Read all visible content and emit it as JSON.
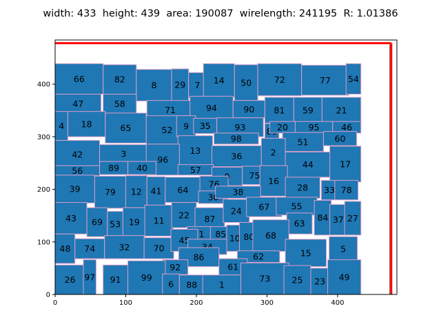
{
  "chart_data": {
    "type": "floorplan",
    "title": "width: 433  height: 439  area: 190087  wirelength: 241195  R: 1.01386",
    "xlim": [
      0,
      484
    ],
    "ylim": [
      0,
      484
    ],
    "xticks": [
      0,
      100,
      200,
      300,
      400
    ],
    "yticks": [
      0,
      100,
      200,
      300,
      400
    ],
    "grid": false,
    "colors": {
      "block_fill": "#1f77b4",
      "block_edge": "#d9a0c8",
      "outline": "#ff0000",
      "outline_dark": "#7a1a1a"
    },
    "outline": {
      "width": 476,
      "height": 478
    },
    "blocks": [
      {
        "id": "66",
        "x": 0,
        "y": 381,
        "w": 68,
        "h": 58
      },
      {
        "id": "82",
        "x": 68,
        "y": 381,
        "w": 47,
        "h": 56
      },
      {
        "id": "8",
        "x": 115,
        "y": 368,
        "w": 50,
        "h": 60
      },
      {
        "id": "29",
        "x": 165,
        "y": 368,
        "w": 24,
        "h": 61
      },
      {
        "id": "7",
        "x": 189,
        "y": 374,
        "w": 25,
        "h": 48
      },
      {
        "id": "14",
        "x": 210,
        "y": 375,
        "w": 44,
        "h": 64
      },
      {
        "id": "50",
        "x": 254,
        "y": 369,
        "w": 33,
        "h": 68
      },
      {
        "id": "72",
        "x": 287,
        "y": 378,
        "w": 62,
        "h": 61
      },
      {
        "id": "77",
        "x": 349,
        "y": 379,
        "w": 67,
        "h": 57
      },
      {
        "id": "54",
        "x": 412,
        "y": 381,
        "w": 21,
        "h": 58
      },
      {
        "id": "47",
        "x": 0,
        "y": 345,
        "w": 65,
        "h": 36
      },
      {
        "id": "58",
        "x": 68,
        "y": 345,
        "w": 47,
        "h": 36
      },
      {
        "id": "71",
        "x": 130,
        "y": 333,
        "w": 66,
        "h": 36
      },
      {
        "id": "94",
        "x": 191,
        "y": 333,
        "w": 61,
        "h": 44
      },
      {
        "id": "90",
        "x": 252,
        "y": 336,
        "w": 45,
        "h": 33
      },
      {
        "id": "81",
        "x": 297,
        "y": 326,
        "w": 41,
        "h": 49
      },
      {
        "id": "59",
        "x": 338,
        "y": 326,
        "w": 40,
        "h": 49
      },
      {
        "id": "21",
        "x": 378,
        "y": 326,
        "w": 55,
        "h": 49
      },
      {
        "id": "4",
        "x": 0,
        "y": 293,
        "w": 18,
        "h": 55
      },
      {
        "id": "18",
        "x": 18,
        "y": 300,
        "w": 53,
        "h": 48
      },
      {
        "id": "65",
        "x": 71,
        "y": 288,
        "w": 58,
        "h": 57
      },
      {
        "id": "52",
        "x": 129,
        "y": 286,
        "w": 59,
        "h": 54
      },
      {
        "id": "9",
        "x": 172,
        "y": 300,
        "w": 27,
        "h": 40
      },
      {
        "id": "35",
        "x": 196,
        "y": 306,
        "w": 33,
        "h": 29
      },
      {
        "id": "93",
        "x": 229,
        "y": 300,
        "w": 66,
        "h": 36
      },
      {
        "id": "83",
        "x": 297,
        "y": 296,
        "w": 20,
        "h": 29
      },
      {
        "id": "20",
        "x": 304,
        "y": 307,
        "w": 36,
        "h": 22
      },
      {
        "id": "95",
        "x": 340,
        "y": 307,
        "w": 53,
        "h": 22
      },
      {
        "id": "46",
        "x": 393,
        "y": 307,
        "w": 40,
        "h": 22
      },
      {
        "id": "42",
        "x": 0,
        "y": 240,
        "w": 63,
        "h": 53
      },
      {
        "id": "3",
        "x": 63,
        "y": 250,
        "w": 68,
        "h": 35
      },
      {
        "id": "98",
        "x": 225,
        "y": 286,
        "w": 63,
        "h": 21
      },
      {
        "id": "51",
        "x": 322,
        "y": 272,
        "w": 58,
        "h": 36
      },
      {
        "id": "60",
        "x": 380,
        "y": 283,
        "w": 47,
        "h": 27
      },
      {
        "id": "13",
        "x": 174,
        "y": 245,
        "w": 49,
        "h": 57
      },
      {
        "id": "96",
        "x": 129,
        "y": 227,
        "w": 47,
        "h": 59
      },
      {
        "id": "36",
        "x": 222,
        "y": 243,
        "w": 70,
        "h": 40
      },
      {
        "id": "2",
        "x": 292,
        "y": 243,
        "w": 34,
        "h": 54
      },
      {
        "id": "44",
        "x": 326,
        "y": 223,
        "w": 64,
        "h": 48
      },
      {
        "id": "17",
        "x": 389,
        "y": 214,
        "w": 44,
        "h": 68
      },
      {
        "id": "56",
        "x": 0,
        "y": 226,
        "w": 63,
        "h": 19
      },
      {
        "id": "89",
        "x": 63,
        "y": 228,
        "w": 40,
        "h": 25
      },
      {
        "id": "40",
        "x": 103,
        "y": 228,
        "w": 40,
        "h": 25
      },
      {
        "id": "57",
        "x": 174,
        "y": 227,
        "w": 50,
        "h": 20
      },
      {
        "id": "0",
        "x": 222,
        "y": 207,
        "w": 43,
        "h": 35
      },
      {
        "id": "75",
        "x": 265,
        "y": 209,
        "w": 35,
        "h": 35
      },
      {
        "id": "16",
        "x": 290,
        "y": 187,
        "w": 39,
        "h": 58
      },
      {
        "id": "39",
        "x": 0,
        "y": 174,
        "w": 56,
        "h": 53
      },
      {
        "id": "79",
        "x": 56,
        "y": 164,
        "w": 44,
        "h": 61
      },
      {
        "id": "12",
        "x": 100,
        "y": 165,
        "w": 30,
        "h": 61
      },
      {
        "id": "41",
        "x": 130,
        "y": 169,
        "w": 26,
        "h": 55
      },
      {
        "id": "64",
        "x": 156,
        "y": 175,
        "w": 50,
        "h": 48
      },
      {
        "id": "76",
        "x": 205,
        "y": 195,
        "w": 40,
        "h": 30
      },
      {
        "id": "30",
        "x": 203,
        "y": 173,
        "w": 42,
        "h": 24
      },
      {
        "id": "38",
        "x": 227,
        "y": 183,
        "w": 64,
        "h": 23
      },
      {
        "id": "28",
        "x": 326,
        "y": 183,
        "w": 49,
        "h": 40
      },
      {
        "id": "33",
        "x": 377,
        "y": 180,
        "w": 23,
        "h": 37
      },
      {
        "id": "78",
        "x": 396,
        "y": 180,
        "w": 33,
        "h": 37
      },
      {
        "id": "43",
        "x": 0,
        "y": 115,
        "w": 45,
        "h": 60
      },
      {
        "id": "69",
        "x": 45,
        "y": 110,
        "w": 29,
        "h": 55
      },
      {
        "id": "53",
        "x": 74,
        "y": 110,
        "w": 22,
        "h": 48
      },
      {
        "id": "19",
        "x": 96,
        "y": 110,
        "w": 32,
        "h": 55
      },
      {
        "id": "11",
        "x": 127,
        "y": 111,
        "w": 40,
        "h": 59
      },
      {
        "id": "22",
        "x": 165,
        "y": 127,
        "w": 35,
        "h": 48
      },
      {
        "id": "87",
        "x": 198,
        "y": 122,
        "w": 42,
        "h": 43
      },
      {
        "id": "24",
        "x": 238,
        "y": 137,
        "w": 37,
        "h": 44
      },
      {
        "id": "67",
        "x": 271,
        "y": 148,
        "w": 50,
        "h": 37
      },
      {
        "id": "55",
        "x": 313,
        "y": 151,
        "w": 58,
        "h": 34
      },
      {
        "id": "63",
        "x": 328,
        "y": 115,
        "w": 36,
        "h": 40
      },
      {
        "id": "84",
        "x": 367,
        "y": 113,
        "w": 24,
        "h": 66
      },
      {
        "id": "37",
        "x": 389,
        "y": 113,
        "w": 24,
        "h": 58
      },
      {
        "id": "27",
        "x": 410,
        "y": 113,
        "w": 23,
        "h": 64
      },
      {
        "id": "31",
        "x": 187,
        "y": 100,
        "w": 33,
        "h": 29
      },
      {
        "id": "85",
        "x": 220,
        "y": 100,
        "w": 29,
        "h": 29
      },
      {
        "id": "10",
        "x": 243,
        "y": 82,
        "w": 23,
        "h": 50
      },
      {
        "id": "80",
        "x": 261,
        "y": 82,
        "w": 27,
        "h": 55
      },
      {
        "id": "68",
        "x": 280,
        "y": 82,
        "w": 51,
        "h": 60
      },
      {
        "id": "48",
        "x": 0,
        "y": 59,
        "w": 28,
        "h": 56
      },
      {
        "id": "74",
        "x": 28,
        "y": 68,
        "w": 42,
        "h": 38
      },
      {
        "id": "32",
        "x": 70,
        "y": 68,
        "w": 56,
        "h": 44
      },
      {
        "id": "70",
        "x": 126,
        "y": 68,
        "w": 42,
        "h": 40
      },
      {
        "id": "45",
        "x": 164,
        "y": 82,
        "w": 38,
        "h": 42
      },
      {
        "id": "34",
        "x": 188,
        "y": 76,
        "w": 55,
        "h": 29
      },
      {
        "id": "15",
        "x": 326,
        "y": 53,
        "w": 58,
        "h": 52
      },
      {
        "id": "5",
        "x": 388,
        "y": 63,
        "w": 40,
        "h": 47
      },
      {
        "id": "62",
        "x": 258,
        "y": 61,
        "w": 60,
        "h": 22
      },
      {
        "id": "86",
        "x": 175,
        "y": 53,
        "w": 57,
        "h": 36
      },
      {
        "id": "61",
        "x": 232,
        "y": 37,
        "w": 40,
        "h": 31
      },
      {
        "id": "92",
        "x": 152,
        "y": 38,
        "w": 36,
        "h": 28
      },
      {
        "id": "26",
        "x": 0,
        "y": 0,
        "w": 42,
        "h": 56
      },
      {
        "id": "97",
        "x": 40,
        "y": 0,
        "w": 18,
        "h": 66
      },
      {
        "id": "91",
        "x": 68,
        "y": 0,
        "w": 35,
        "h": 56
      },
      {
        "id": "99",
        "x": 103,
        "y": 0,
        "w": 53,
        "h": 64
      },
      {
        "id": "6",
        "x": 152,
        "y": 0,
        "w": 24,
        "h": 39
      },
      {
        "id": "88",
        "x": 176,
        "y": 0,
        "w": 35,
        "h": 37
      },
      {
        "id": "1",
        "x": 209,
        "y": 0,
        "w": 54,
        "h": 37
      },
      {
        "id": "73",
        "x": 263,
        "y": 0,
        "w": 68,
        "h": 60
      },
      {
        "id": "25",
        "x": 324,
        "y": 0,
        "w": 38,
        "h": 55
      },
      {
        "id": "23",
        "x": 362,
        "y": 0,
        "w": 26,
        "h": 50
      },
      {
        "id": "49",
        "x": 386,
        "y": 0,
        "w": 47,
        "h": 66
      }
    ]
  }
}
